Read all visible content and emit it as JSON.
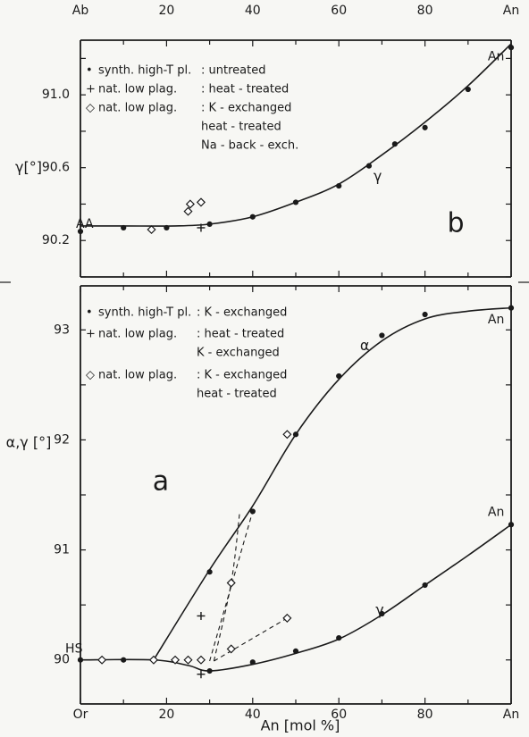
{
  "chart_data": [
    {
      "panel": "b",
      "type": "scatter",
      "panel_label": "b",
      "ylabel": "γ[°]",
      "xlim": [
        0,
        100
      ],
      "ylim": [
        90.0,
        91.3
      ],
      "x_ticks": [
        0,
        20,
        40,
        60,
        80,
        100
      ],
      "x_tick_labels": [
        "Ab",
        "20",
        "40",
        "60",
        "80",
        "An"
      ],
      "y_ticks": [
        90.2,
        90.6,
        91.0
      ],
      "y_tick_labels": [
        "90.2",
        "90.6",
        "91.0"
      ],
      "legend": [
        {
          "marker": "•",
          "sample": "synth. high-T pl.",
          "treatment": ": untreated"
        },
        {
          "marker": "+",
          "sample": "nat. low plag.",
          "treatment": ": heat - treated"
        },
        {
          "marker": "◇",
          "sample": "nat. low plag.",
          "treatment": ": K - exchanged\nheat - treated\nNa - back - exch."
        }
      ],
      "annotations": [
        {
          "text": "AA",
          "x": 1,
          "y": 90.29
        },
        {
          "text": "An",
          "x": 96.5,
          "y": 91.21
        },
        {
          "text": "γ",
          "x": 69,
          "y": 90.55
        }
      ],
      "series": [
        {
          "marker": "dot",
          "points": [
            [
              0,
              90.25
            ],
            [
              10,
              90.27
            ],
            [
              20,
              90.27
            ],
            [
              30,
              90.29
            ],
            [
              40,
              90.33
            ],
            [
              50,
              90.41
            ],
            [
              60,
              90.5
            ],
            [
              67,
              90.61
            ],
            [
              73,
              90.73
            ],
            [
              80,
              90.82
            ],
            [
              90,
              91.03
            ],
            [
              100,
              91.26
            ]
          ]
        },
        {
          "marker": "plus",
          "points": [
            [
              28,
              90.27
            ]
          ]
        },
        {
          "marker": "diamond",
          "points": [
            [
              16.5,
              90.26
            ],
            [
              25,
              90.36
            ],
            [
              25.5,
              90.4
            ],
            [
              28,
              90.41
            ]
          ]
        }
      ],
      "curves": [
        {
          "name": "γ",
          "points": [
            [
              0,
              90.28
            ],
            [
              10,
              90.28
            ],
            [
              22,
              90.28
            ],
            [
              30,
              90.29
            ],
            [
              40,
              90.33
            ],
            [
              50,
              90.41
            ],
            [
              60,
              90.51
            ],
            [
              70,
              90.67
            ],
            [
              80,
              90.85
            ],
            [
              90,
              91.05
            ],
            [
              100,
              91.28
            ]
          ]
        }
      ]
    },
    {
      "panel": "a",
      "type": "scatter",
      "panel_label": "a",
      "xlabel": "An [mol %]",
      "ylabel": "α,γ [°]",
      "xlim": [
        0,
        100
      ],
      "ylim": [
        89.6,
        93.4
      ],
      "x_ticks": [
        0,
        20,
        40,
        60,
        80,
        100
      ],
      "x_tick_labels": [
        "Or",
        "20",
        "40",
        "60",
        "80",
        "An"
      ],
      "y_ticks": [
        90,
        91,
        92,
        93
      ],
      "y_tick_labels": [
        "90",
        "91",
        "92",
        "93"
      ],
      "legend": [
        {
          "marker": "•",
          "sample": "synth. high-T pl.",
          "treatment": ": K - exchanged"
        },
        {
          "marker": "+",
          "sample": "nat. low plag.",
          "treatment": ": heat - treated\nK - exchanged"
        },
        {
          "marker": "◇",
          "sample": "nat. low plag.",
          "treatment": ": K - exchanged\nheat - treated"
        }
      ],
      "annotations": [
        {
          "text": "HS",
          "x": -1.5,
          "y": 90.1
        },
        {
          "text": "An",
          "x": 96.5,
          "y": 93.09
        },
        {
          "text": "An",
          "x": 96.5,
          "y": 91.34
        },
        {
          "text": "α",
          "x": 66,
          "y": 92.85
        },
        {
          "text": "γ",
          "x": 69.5,
          "y": 90.45
        }
      ],
      "series": [
        {
          "marker": "dot",
          "points": [
            [
              0,
              90.0
            ],
            [
              10,
              90.0
            ],
            [
              17,
              90.0
            ],
            [
              30,
              89.9
            ],
            [
              40,
              89.98
            ],
            [
              50,
              90.08
            ],
            [
              60,
              90.2
            ],
            [
              70,
              90.42
            ],
            [
              80,
              90.68
            ],
            [
              100,
              91.23
            ],
            [
              30,
              90.8
            ],
            [
              40,
              91.35
            ],
            [
              50,
              92.05
            ],
            [
              60,
              92.58
            ],
            [
              70,
              92.95
            ],
            [
              80,
              93.14
            ],
            [
              100,
              93.2
            ]
          ]
        },
        {
          "marker": "plus",
          "points": [
            [
              28,
              90.4
            ],
            [
              28,
              89.87
            ]
          ]
        },
        {
          "marker": "diamond",
          "points": [
            [
              5,
              90.0
            ],
            [
              17,
              90.0
            ],
            [
              22,
              90.0
            ],
            [
              25,
              90.0
            ],
            [
              28,
              90.0
            ],
            [
              35,
              90.1
            ],
            [
              35,
              90.7
            ],
            [
              48,
              90.38
            ],
            [
              48,
              92.05
            ]
          ]
        }
      ],
      "curves": [
        {
          "name": "α",
          "points": [
            [
              17,
              90.0
            ],
            [
              30,
              90.82
            ],
            [
              40,
              91.4
            ],
            [
              50,
              92.05
            ],
            [
              60,
              92.55
            ],
            [
              70,
              92.9
            ],
            [
              80,
              93.1
            ],
            [
              90,
              93.17
            ],
            [
              100,
              93.2
            ]
          ]
        },
        {
          "name": "γ",
          "points": [
            [
              0,
              90.0
            ],
            [
              17,
              90.0
            ],
            [
              25,
              89.95
            ],
            [
              30,
              89.9
            ],
            [
              40,
              89.96
            ],
            [
              50,
              90.06
            ],
            [
              60,
              90.19
            ],
            [
              70,
              90.41
            ],
            [
              80,
              90.68
            ],
            [
              90,
              90.95
            ],
            [
              100,
              91.23
            ]
          ]
        },
        {
          "name": "dashed-1",
          "dashed": true,
          "points": [
            [
              30,
              89.99
            ],
            [
              40,
              91.35
            ]
          ]
        },
        {
          "name": "dashed-2",
          "dashed": true,
          "points": [
            [
              31,
              89.99
            ],
            [
              35,
              90.7
            ],
            [
              37,
              91.35
            ]
          ]
        },
        {
          "name": "dashed-3",
          "dashed": true,
          "points": [
            [
              31,
              89.99
            ],
            [
              48,
              90.38
            ]
          ]
        }
      ]
    }
  ]
}
